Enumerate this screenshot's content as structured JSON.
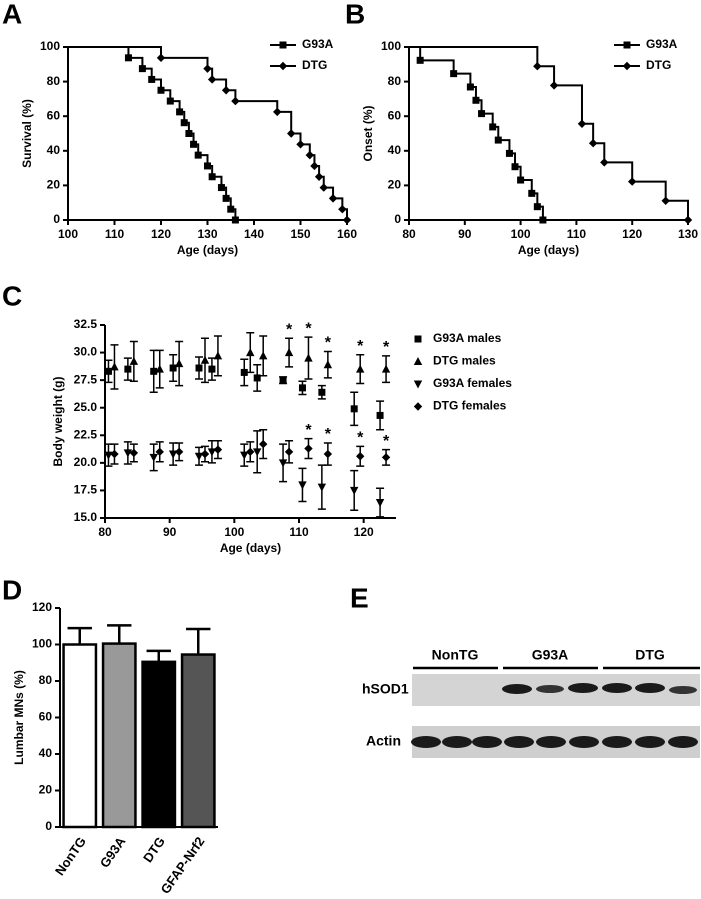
{
  "chart_data": [
    {
      "type": "step",
      "panel": "A",
      "xlabel": "Age (days)",
      "ylabel": "Survival (%)",
      "xlim": [
        100,
        160
      ],
      "xticks": [
        100,
        110,
        120,
        130,
        140,
        150,
        160
      ],
      "ylim": [
        0,
        100
      ],
      "yticks": [
        0,
        20,
        40,
        60,
        80,
        100
      ],
      "legend": "upper right",
      "series": [
        {
          "name": "G93A",
          "color": "#000000",
          "marker": "square",
          "x": [
            100,
            113,
            116,
            118,
            120,
            122,
            124,
            125,
            126,
            127,
            128,
            130,
            131,
            133,
            134,
            135,
            136
          ],
          "values": [
            100,
            93.75,
            87.5,
            81.25,
            75,
            68.75,
            62.5,
            56.25,
            50,
            43.75,
            37.5,
            31.25,
            25,
            18.75,
            12.5,
            6.25,
            0
          ]
        },
        {
          "name": "DTG",
          "color": "#000000",
          "marker": "diamond",
          "x": [
            100,
            120,
            130,
            131,
            134,
            136,
            145,
            148,
            150,
            152,
            153,
            154,
            155,
            157,
            159,
            160
          ],
          "values": [
            100,
            93.75,
            87.5,
            81.25,
            75,
            68.75,
            62.5,
            50,
            43.75,
            37.5,
            31.25,
            25,
            18.75,
            12.5,
            6.25,
            0
          ]
        }
      ]
    },
    {
      "type": "step",
      "panel": "B",
      "xlabel": "Age (days)",
      "ylabel": "Onset (%)",
      "xlim": [
        80,
        130
      ],
      "xticks": [
        80,
        90,
        100,
        110,
        120,
        130
      ],
      "ylim": [
        0,
        100
      ],
      "yticks": [
        0,
        20,
        40,
        60,
        80,
        100
      ],
      "legend": "upper right",
      "series": [
        {
          "name": "G93A",
          "color": "#000000",
          "marker": "square",
          "x": [
            80,
            82,
            88,
            91,
            92,
            93,
            95,
            96,
            98,
            99,
            100,
            102,
            103,
            104
          ],
          "values": [
            100,
            92.3,
            84.6,
            76.9,
            69.2,
            61.5,
            53.8,
            46.2,
            38.5,
            30.8,
            23.1,
            15.4,
            7.7,
            0
          ]
        },
        {
          "name": "DTG",
          "color": "#000000",
          "marker": "diamond",
          "x": [
            80,
            103,
            106,
            111,
            113,
            115,
            120,
            126,
            130
          ],
          "values": [
            100,
            88.9,
            77.8,
            55.6,
            44.4,
            33.3,
            22.2,
            11.1,
            0
          ]
        }
      ]
    },
    {
      "type": "scatter",
      "panel": "C",
      "xlabel": "Age (days)",
      "ylabel": "Body weight (g)",
      "xlim": [
        80,
        125
      ],
      "xticks": [
        80,
        90,
        100,
        110,
        120
      ],
      "ylim": [
        15,
        32.5
      ],
      "yticks": [
        {
          "value": 15,
          "label": "15.0"
        },
        {
          "value": 17.5,
          "label": "17.5"
        },
        {
          "value": 20,
          "label": "20.0"
        },
        {
          "value": 22.5,
          "label": "22.5"
        },
        {
          "value": 25,
          "label": "25.0"
        },
        {
          "value": 27.5,
          "label": "27.5"
        },
        {
          "value": 30,
          "label": "30.0"
        },
        {
          "value": 32.5,
          "label": "32.5"
        }
      ],
      "legend": "outside right",
      "x": [
        81,
        84,
        88,
        91,
        95,
        97,
        102,
        104,
        108,
        111,
        114,
        119,
        123
      ],
      "series": [
        {
          "name": "G93A males",
          "color": "#000000",
          "marker": "square",
          "values": [
            28.3,
            28.5,
            28.3,
            28.6,
            28.6,
            28.5,
            28.2,
            27.7,
            27.5,
            26.8,
            26.4,
            24.9,
            24.3
          ],
          "errors": [
            1.0,
            1.0,
            1.9,
            1.2,
            1.0,
            1.0,
            1.2,
            1.2,
            0.3,
            0.6,
            0.6,
            1.5,
            1.3
          ]
        },
        {
          "name": "DTG males",
          "color": "#000000",
          "marker": "triangle-up",
          "values": [
            28.7,
            29.2,
            28.5,
            29.0,
            29.3,
            29.7,
            30.0,
            29.7,
            30.0,
            29.5,
            28.9,
            28.5,
            28.5
          ],
          "errors": [
            2.0,
            1.8,
            1.7,
            2.0,
            2.0,
            1.8,
            1.8,
            1.8,
            1.3,
            1.9,
            1.2,
            1.3,
            1.2
          ]
        },
        {
          "name": "G93A females",
          "color": "#000000",
          "marker": "triangle-down",
          "values": [
            20.7,
            20.9,
            20.5,
            20.8,
            20.6,
            21.0,
            20.7,
            21.0,
            20.0,
            18.0,
            17.8,
            17.5,
            16.4
          ],
          "errors": [
            1.0,
            1.0,
            1.2,
            1.0,
            0.8,
            1.0,
            1.0,
            1.9,
            1.7,
            1.5,
            2.0,
            1.8,
            1.3
          ]
        },
        {
          "name": "DTG females",
          "color": "#000000",
          "marker": "diamond",
          "values": [
            20.8,
            20.9,
            21.0,
            21.0,
            20.8,
            21.2,
            21.0,
            21.7,
            21.0,
            21.3,
            20.8,
            20.6,
            20.5
          ],
          "errors": [
            0.9,
            0.8,
            0.9,
            0.8,
            0.7,
            0.8,
            0.9,
            1.3,
            1.0,
            0.9,
            1.0,
            0.9,
            0.7
          ]
        }
      ],
      "annotations": [
        {
          "text": "*",
          "x": 108,
          "series": 1
        },
        {
          "text": "*",
          "x": 111,
          "series": 1
        },
        {
          "text": "*",
          "x": 114,
          "series": 1
        },
        {
          "text": "*",
          "x": 119,
          "series": 1
        },
        {
          "text": "*",
          "x": 123,
          "series": 1
        },
        {
          "text": "*",
          "x": 111,
          "series": 3
        },
        {
          "text": "*",
          "x": 114,
          "series": 3
        },
        {
          "text": "*",
          "x": 119,
          "series": 3
        },
        {
          "text": "*",
          "x": 123,
          "series": 3
        }
      ]
    },
    {
      "type": "bar",
      "panel": "D",
      "ylabel": "Lumbar MNs (%)",
      "categories": [
        "NonTG",
        "G93A",
        "DTG",
        "GFAP-Nrf2"
      ],
      "values": [
        100,
        100.5,
        90.5,
        94.5
      ],
      "errors": [
        9,
        10,
        6,
        14
      ],
      "colors": [
        "#ffffff",
        "#999999",
        "#000000",
        "#555555"
      ],
      "ylim": [
        0,
        120
      ],
      "yticks": [
        0,
        20,
        40,
        60,
        80,
        100,
        120
      ]
    }
  ],
  "blot": {
    "panel": "E",
    "groups": [
      "NonTG",
      "G93A",
      "DTG"
    ],
    "rows": [
      "hSOD1",
      "Actin"
    ]
  }
}
